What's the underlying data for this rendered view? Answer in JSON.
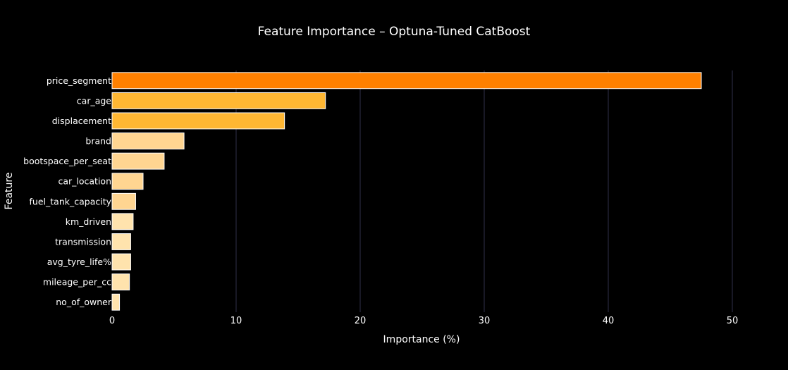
{
  "chart_data": {
    "type": "bar",
    "orientation": "horizontal",
    "title": "Feature Importance – Optuna-Tuned CatBoost",
    "xlabel": "Importance (%)",
    "ylabel": "Feature",
    "xlim": [
      0,
      50
    ],
    "xticks": [
      0,
      10,
      20,
      30,
      40,
      50
    ],
    "grid": true,
    "legend": "none",
    "categories": [
      "price_segment",
      "car_age",
      "displacement",
      "brand",
      "bootspace_per_seat",
      "car_location",
      "fuel_tank_capacity",
      "km_driven",
      "transmission",
      "avg_tyre_life%",
      "mileage_per_cc",
      "no_of_owner"
    ],
    "values": [
      47.5,
      17.2,
      13.9,
      5.8,
      4.2,
      2.5,
      1.9,
      1.7,
      1.5,
      1.5,
      1.4,
      0.6
    ],
    "bar_colors": [
      "#ff8000",
      "#ffb733",
      "#ffb733",
      "#ffd591",
      "#ffd591",
      "#ffd591",
      "#ffd591",
      "#ffe3ad",
      "#ffe3ad",
      "#ffe3ad",
      "#ffe3ad",
      "#ffe3ad"
    ]
  },
  "colors": {
    "background": "#000000",
    "gridline": "#2f2f4a",
    "text": "#ffffff",
    "bar_outline": "#ffffff"
  }
}
